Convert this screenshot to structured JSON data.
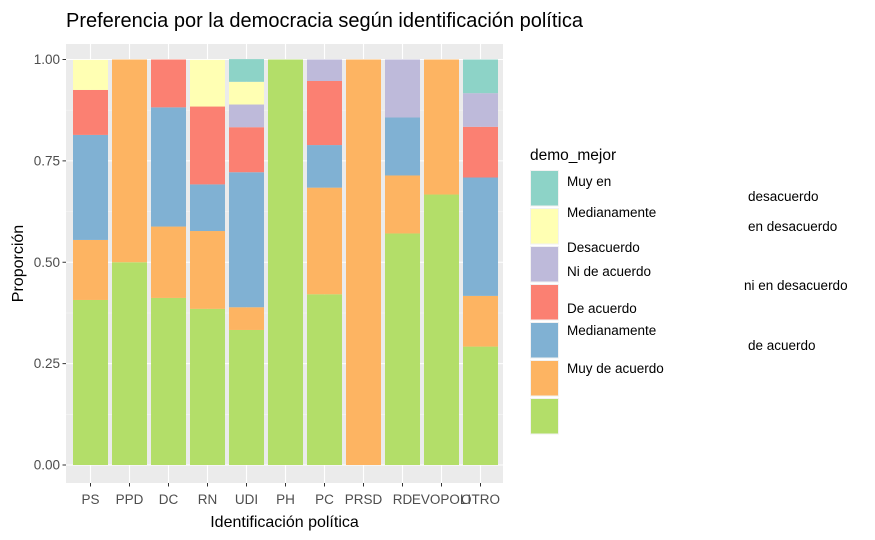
{
  "chart_data": {
    "type": "bar",
    "stacked": "proportion",
    "title": "Preferencia por la democracia según identificación política",
    "xlabel": "Identificación política",
    "ylabel": "Proporción",
    "ylim": [
      0,
      1
    ],
    "yticks": [
      "0.00",
      "0.25",
      "0.50",
      "0.75",
      "1.00"
    ],
    "categories": [
      "PS",
      "PPD",
      "DC",
      "RN",
      "UDI",
      "PH",
      "PC",
      "PRSD",
      "RD",
      "EVOPOLI",
      "OTRO"
    ],
    "tick_labels": [
      "PS",
      "PPD",
      "DC",
      "RN",
      "UDI",
      "PH",
      "PC",
      "PRSD",
      "RD",
      "EVOPOLI",
      "OTRO"
    ],
    "grid": true,
    "legend": {
      "title": "demo_mejor",
      "position": "right",
      "entries": [
        {
          "line1": "Muy en",
          "line2": "desacuerdo"
        },
        {
          "line1": "Medianamente",
          "line2": "en desacuerdo"
        },
        {
          "line1": "Desacuerdo",
          "line2": ""
        },
        {
          "line1": "Ni de acuerdo",
          "line2": "ni en desacuerdo"
        },
        {
          "line1": "De acuerdo",
          "line2": ""
        },
        {
          "line1": "Medianamente",
          "line2": "de acuerdo"
        },
        {
          "line1": "Muy de acuerdo",
          "line2": ""
        }
      ]
    },
    "series": [
      {
        "name": "Muy en desacuerdo",
        "color": "#8DD3C7",
        "values": [
          0,
          0,
          0,
          0,
          0.056,
          0,
          0,
          0,
          0,
          0,
          0.083
        ]
      },
      {
        "name": "Medianamente en desacuerdo",
        "color": "#FFFFB3",
        "values": [
          0.074,
          0,
          0,
          0.115,
          0.056,
          0,
          0,
          0,
          0,
          0,
          0
        ]
      },
      {
        "name": "Desacuerdo",
        "color": "#BEBADA",
        "values": [
          0,
          0,
          0,
          0,
          0.056,
          0,
          0.053,
          0,
          0.143,
          0,
          0.083
        ]
      },
      {
        "name": "Ni de acuerdo ni en desacuerdo",
        "color": "#FB8072",
        "values": [
          0.111,
          0,
          0.118,
          0.192,
          0.111,
          0,
          0.158,
          0,
          0,
          0,
          0.125
        ]
      },
      {
        "name": "De acuerdo",
        "color": "#80B1D3",
        "values": [
          0.259,
          0,
          0.294,
          0.115,
          0.333,
          0,
          0.105,
          0,
          0.143,
          0,
          0.292
        ]
      },
      {
        "name": "Medianamente de acuerdo",
        "color": "#FDB462",
        "values": [
          0.148,
          0.5,
          0.176,
          0.192,
          0.056,
          0,
          0.263,
          1,
          0.143,
          0.333,
          0.125
        ]
      },
      {
        "name": "Muy de acuerdo",
        "color": "#B3DE69",
        "values": [
          0.407,
          0.5,
          0.412,
          0.385,
          0.333,
          1,
          0.421,
          0,
          0.571,
          0.667,
          0.292
        ]
      }
    ]
  }
}
